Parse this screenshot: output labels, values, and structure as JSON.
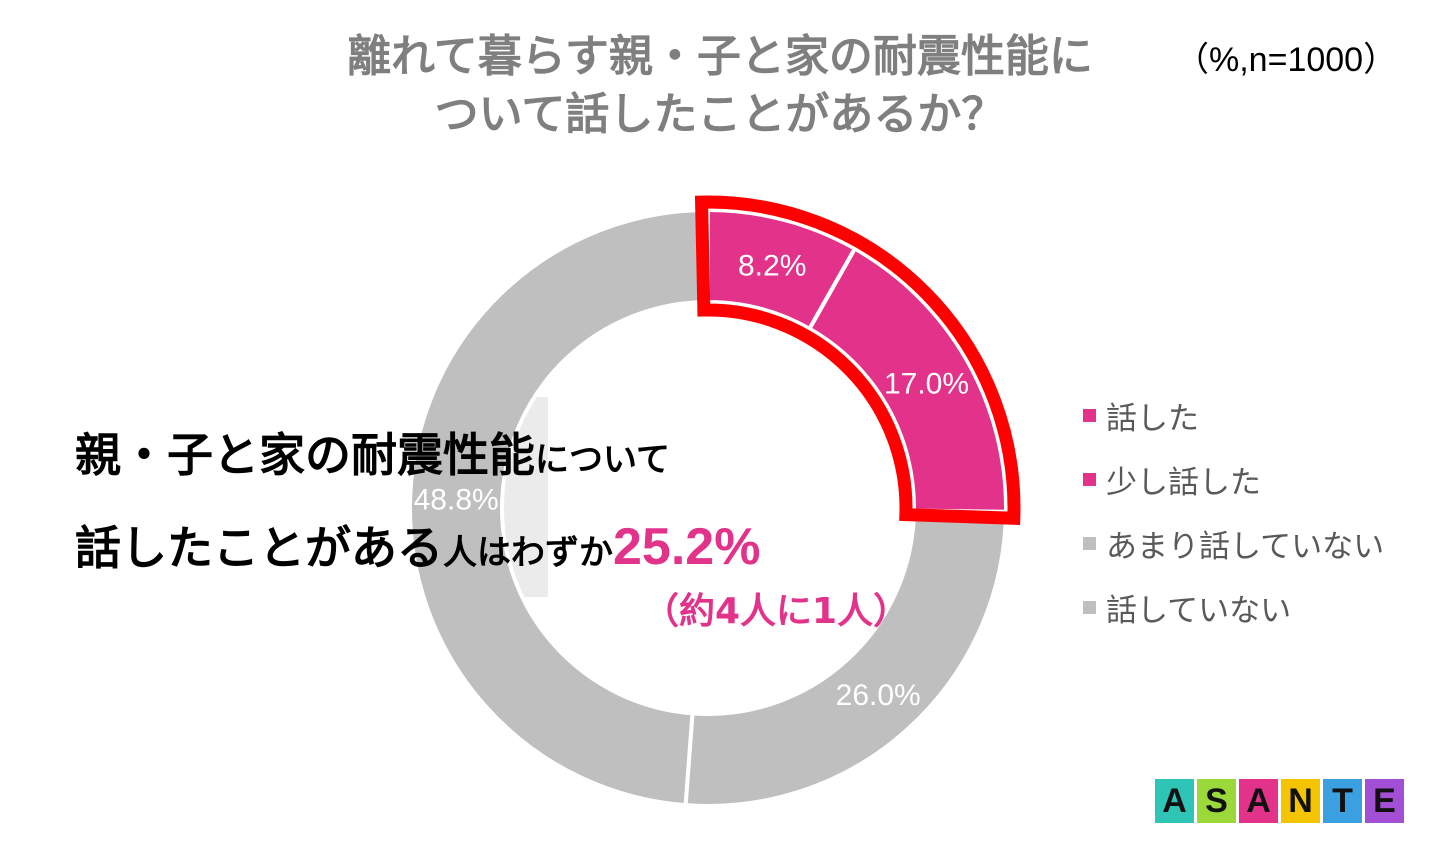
{
  "title": {
    "line1": "離れて暮らす親・子と家の耐震性能に",
    "line2": "ついて話したことがあるか？"
  },
  "sample_note": "（%,n=1000）",
  "callout": {
    "line1_bold": "親・子と家の耐震性能",
    "line1_small": "について",
    "line2_bold": "話したことがある",
    "line2_small": "人はわずか",
    "line2_pct": "25.2%",
    "line3": "（約4人に1人）"
  },
  "legend": [
    {
      "label": "話した",
      "color": "#e2328a"
    },
    {
      "label": "少し話した",
      "color": "#e2328a"
    },
    {
      "label": "あまり話していない",
      "color": "#bfbfbf"
    },
    {
      "label": "話していない",
      "color": "#bfbfbf"
    }
  ],
  "logo": {
    "text": "ASANTE",
    "letters": [
      "A",
      "S",
      "A",
      "N",
      "T",
      "E"
    ],
    "tile_colors": [
      "#2ec4b6",
      "#9bd83a",
      "#e2328a",
      "#f5c400",
      "#3aa0e0",
      "#a24fd6"
    ]
  },
  "chart_data": {
    "type": "pie",
    "variant": "donut",
    "categories": [
      "話した",
      "少し話した",
      "あまり話していない",
      "話していない"
    ],
    "values": [
      8.2,
      17.0,
      26.0,
      48.8
    ],
    "labels": [
      "8.2%",
      "17.0%",
      "26.0%",
      "48.8%"
    ],
    "colors": [
      "#e2328a",
      "#e2328a",
      "#bfbfbf",
      "#bfbfbf"
    ],
    "label_colors": [
      "#ffffff",
      "#ffffff",
      "#ffffff",
      "#ffffff"
    ],
    "highlight": {
      "categories": [
        "話した",
        "少し話した"
      ],
      "outline_color": "#ff0000"
    },
    "start": "12 o'clock",
    "direction": "clockwise",
    "legend_position": "right"
  }
}
